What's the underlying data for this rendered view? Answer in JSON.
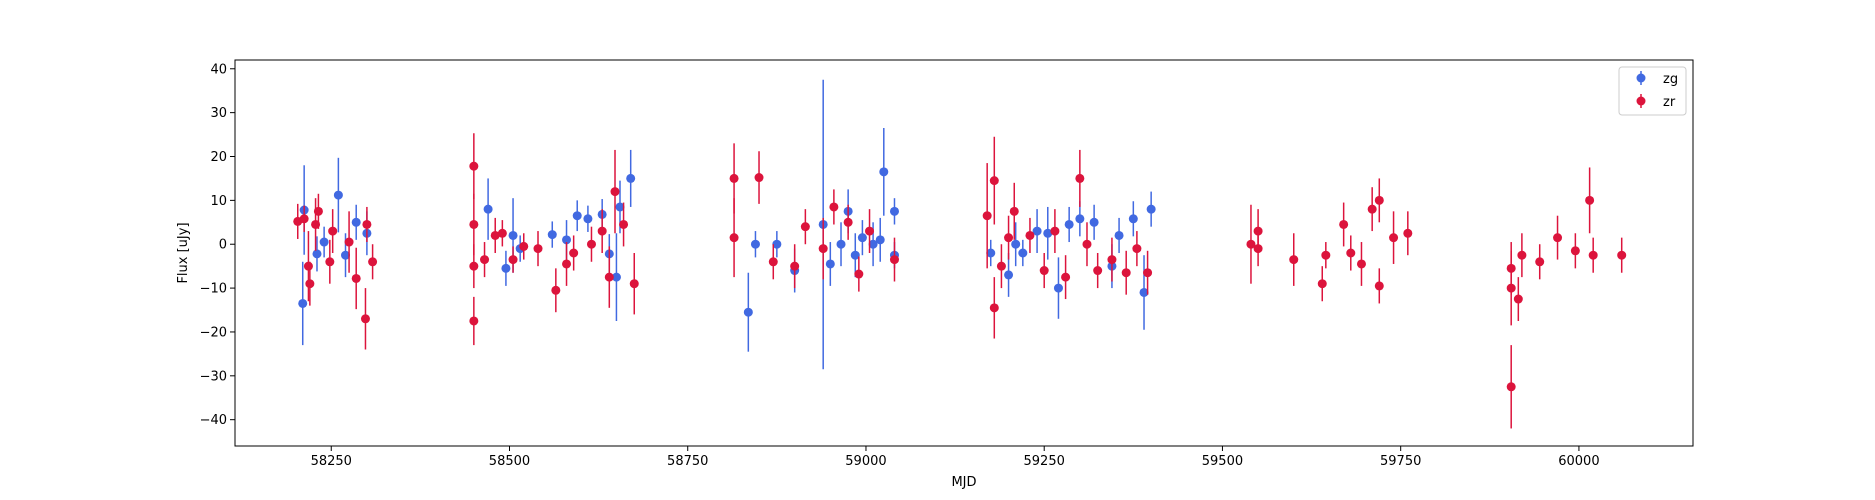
{
  "chart_data": {
    "type": "scatter",
    "title": "",
    "xlabel": "MJD",
    "ylabel": "Flux [uJy]",
    "xlim": [
      58115,
      60160
    ],
    "ylim": [
      -46,
      42
    ],
    "xticks": [
      58250,
      58500,
      58750,
      59000,
      59250,
      59500,
      59750,
      60000
    ],
    "yticks": [
      -40,
      -30,
      -20,
      -10,
      0,
      10,
      20,
      30,
      40
    ],
    "grid": false,
    "legend_position": "top-right",
    "series": [
      {
        "name": "zg",
        "color": "#4169e1",
        "marker": "circle",
        "error_bars": true,
        "points": [
          [
            58210,
            -13.5,
            9.5
          ],
          [
            58212,
            7.8,
            10.2
          ],
          [
            58230,
            -2.2,
            4
          ],
          [
            58240,
            0.5,
            3.5
          ],
          [
            58260,
            11.2,
            8.5
          ],
          [
            58270,
            -2.5,
            5
          ],
          [
            58285,
            5,
            4
          ],
          [
            58300,
            2.5,
            5
          ],
          [
            58470,
            8,
            7
          ],
          [
            58495,
            -5.5,
            4
          ],
          [
            58505,
            2,
            8.5
          ],
          [
            58515,
            -1,
            3
          ],
          [
            58560,
            2.2,
            3
          ],
          [
            58580,
            1,
            4.5
          ],
          [
            58595,
            6.5,
            3.5
          ],
          [
            58610,
            5.8,
            3
          ],
          [
            58630,
            6.8,
            3.5
          ],
          [
            58640,
            -2.2,
            4.5
          ],
          [
            58650,
            -7.5,
            10
          ],
          [
            58655,
            8.5,
            6
          ],
          [
            58670,
            15,
            6.5
          ],
          [
            58835,
            -15.5,
            9
          ],
          [
            58845,
            0,
            3
          ],
          [
            58875,
            0,
            3
          ],
          [
            58900,
            -6,
            5
          ],
          [
            58940,
            4.5,
            33
          ],
          [
            58950,
            -4.5,
            5
          ],
          [
            58965,
            0,
            5
          ],
          [
            58975,
            7.5,
            5
          ],
          [
            58985,
            -2.5,
            5
          ],
          [
            58995,
            1.5,
            4
          ],
          [
            59010,
            0,
            5
          ],
          [
            59020,
            1,
            5
          ],
          [
            59025,
            16.5,
            10
          ],
          [
            59040,
            -2.5,
            3
          ],
          [
            59040,
            7.5,
            3
          ],
          [
            59175,
            -2,
            3
          ],
          [
            59200,
            -7,
            5
          ],
          [
            59210,
            0,
            5
          ],
          [
            59220,
            -2,
            3
          ],
          [
            59240,
            3,
            5
          ],
          [
            59255,
            2.5,
            6
          ],
          [
            59270,
            -10,
            7
          ],
          [
            59285,
            4.5,
            4
          ],
          [
            59300,
            5.8,
            4
          ],
          [
            59320,
            5,
            4
          ],
          [
            59345,
            -5,
            5
          ],
          [
            59355,
            2,
            4
          ],
          [
            59375,
            5.8,
            4
          ],
          [
            59390,
            -11,
            8.5
          ],
          [
            59400,
            8,
            4
          ]
        ]
      },
      {
        "name": "zr",
        "color": "#dc143c",
        "marker": "circle",
        "error_bars": true,
        "points": [
          [
            58203,
            5.2,
            4
          ],
          [
            58212,
            5.8,
            3
          ],
          [
            58218,
            -5,
            8
          ],
          [
            58220,
            -9,
            5
          ],
          [
            58228,
            4.5,
            6
          ],
          [
            58232,
            7.5,
            4
          ],
          [
            58248,
            -4,
            5
          ],
          [
            58252,
            3,
            5
          ],
          [
            58275,
            0.5,
            7
          ],
          [
            58285,
            -7.8,
            7
          ],
          [
            58298,
            -17,
            7
          ],
          [
            58300,
            4.5,
            4
          ],
          [
            58308,
            -4,
            4
          ],
          [
            58450,
            17.8,
            7.5
          ],
          [
            58450,
            4.5,
            7
          ],
          [
            58450,
            -5,
            5
          ],
          [
            58450,
            -17.5,
            5.5
          ],
          [
            58465,
            -3.5,
            4
          ],
          [
            58480,
            2,
            4
          ],
          [
            58490,
            2.5,
            3
          ],
          [
            58505,
            -3.5,
            3
          ],
          [
            58520,
            -0.5,
            3
          ],
          [
            58540,
            -1,
            4
          ],
          [
            58565,
            -10.5,
            5
          ],
          [
            58580,
            -4.5,
            5
          ],
          [
            58590,
            -2,
            4
          ],
          [
            58615,
            0,
            4
          ],
          [
            58630,
            3,
            5
          ],
          [
            58640,
            -7.5,
            7
          ],
          [
            58648,
            12,
            9.5
          ],
          [
            58660,
            4.5,
            5
          ],
          [
            58675,
            -9,
            7
          ],
          [
            58815,
            15,
            8
          ],
          [
            58815,
            1.5,
            9
          ],
          [
            58850,
            15.2,
            6
          ],
          [
            58870,
            -4,
            4
          ],
          [
            58900,
            -5,
            5
          ],
          [
            58915,
            4,
            4
          ],
          [
            58940,
            -1,
            7
          ],
          [
            58955,
            8.5,
            4
          ],
          [
            58975,
            5,
            4
          ],
          [
            58990,
            -6.8,
            4
          ],
          [
            59005,
            3,
            5
          ],
          [
            59040,
            -3.5,
            5
          ],
          [
            59170,
            6.5,
            12
          ],
          [
            59180,
            14.5,
            10
          ],
          [
            59180,
            -14.5,
            7
          ],
          [
            59190,
            -5,
            5
          ],
          [
            59200,
            1.5,
            5
          ],
          [
            59208,
            7.5,
            6.5
          ],
          [
            59230,
            2,
            4
          ],
          [
            59250,
            -6,
            4
          ],
          [
            59265,
            3,
            5
          ],
          [
            59280,
            -7.5,
            5
          ],
          [
            59300,
            15,
            6.5
          ],
          [
            59310,
            0,
            5
          ],
          [
            59325,
            -6,
            4
          ],
          [
            59345,
            -3.5,
            5
          ],
          [
            59365,
            -6.5,
            5
          ],
          [
            59380,
            -1,
            4
          ],
          [
            59395,
            -6.5,
            5
          ],
          [
            59540,
            0,
            9
          ],
          [
            59550,
            3,
            5
          ],
          [
            59550,
            -1,
            4
          ],
          [
            59600,
            -3.5,
            6
          ],
          [
            59640,
            -9,
            4
          ],
          [
            59645,
            -2.5,
            3
          ],
          [
            59670,
            4.5,
            5
          ],
          [
            59680,
            -2,
            4
          ],
          [
            59695,
            -4.5,
            5
          ],
          [
            59710,
            8,
            5
          ],
          [
            59720,
            10,
            5
          ],
          [
            59720,
            -9.5,
            4
          ],
          [
            59740,
            1.5,
            6
          ],
          [
            59760,
            2.5,
            5
          ],
          [
            59905,
            -5.5,
            6
          ],
          [
            59905,
            -10,
            8.5
          ],
          [
            59905,
            -32.5,
            9.5
          ],
          [
            59915,
            -12.5,
            5
          ],
          [
            59920,
            -2.5,
            5
          ],
          [
            59945,
            -4,
            4
          ],
          [
            59970,
            1.5,
            5
          ],
          [
            59995,
            -1.5,
            4
          ],
          [
            60015,
            10,
            7.5
          ],
          [
            60020,
            -2.5,
            4
          ],
          [
            60060,
            -2.5,
            4
          ]
        ]
      }
    ]
  }
}
